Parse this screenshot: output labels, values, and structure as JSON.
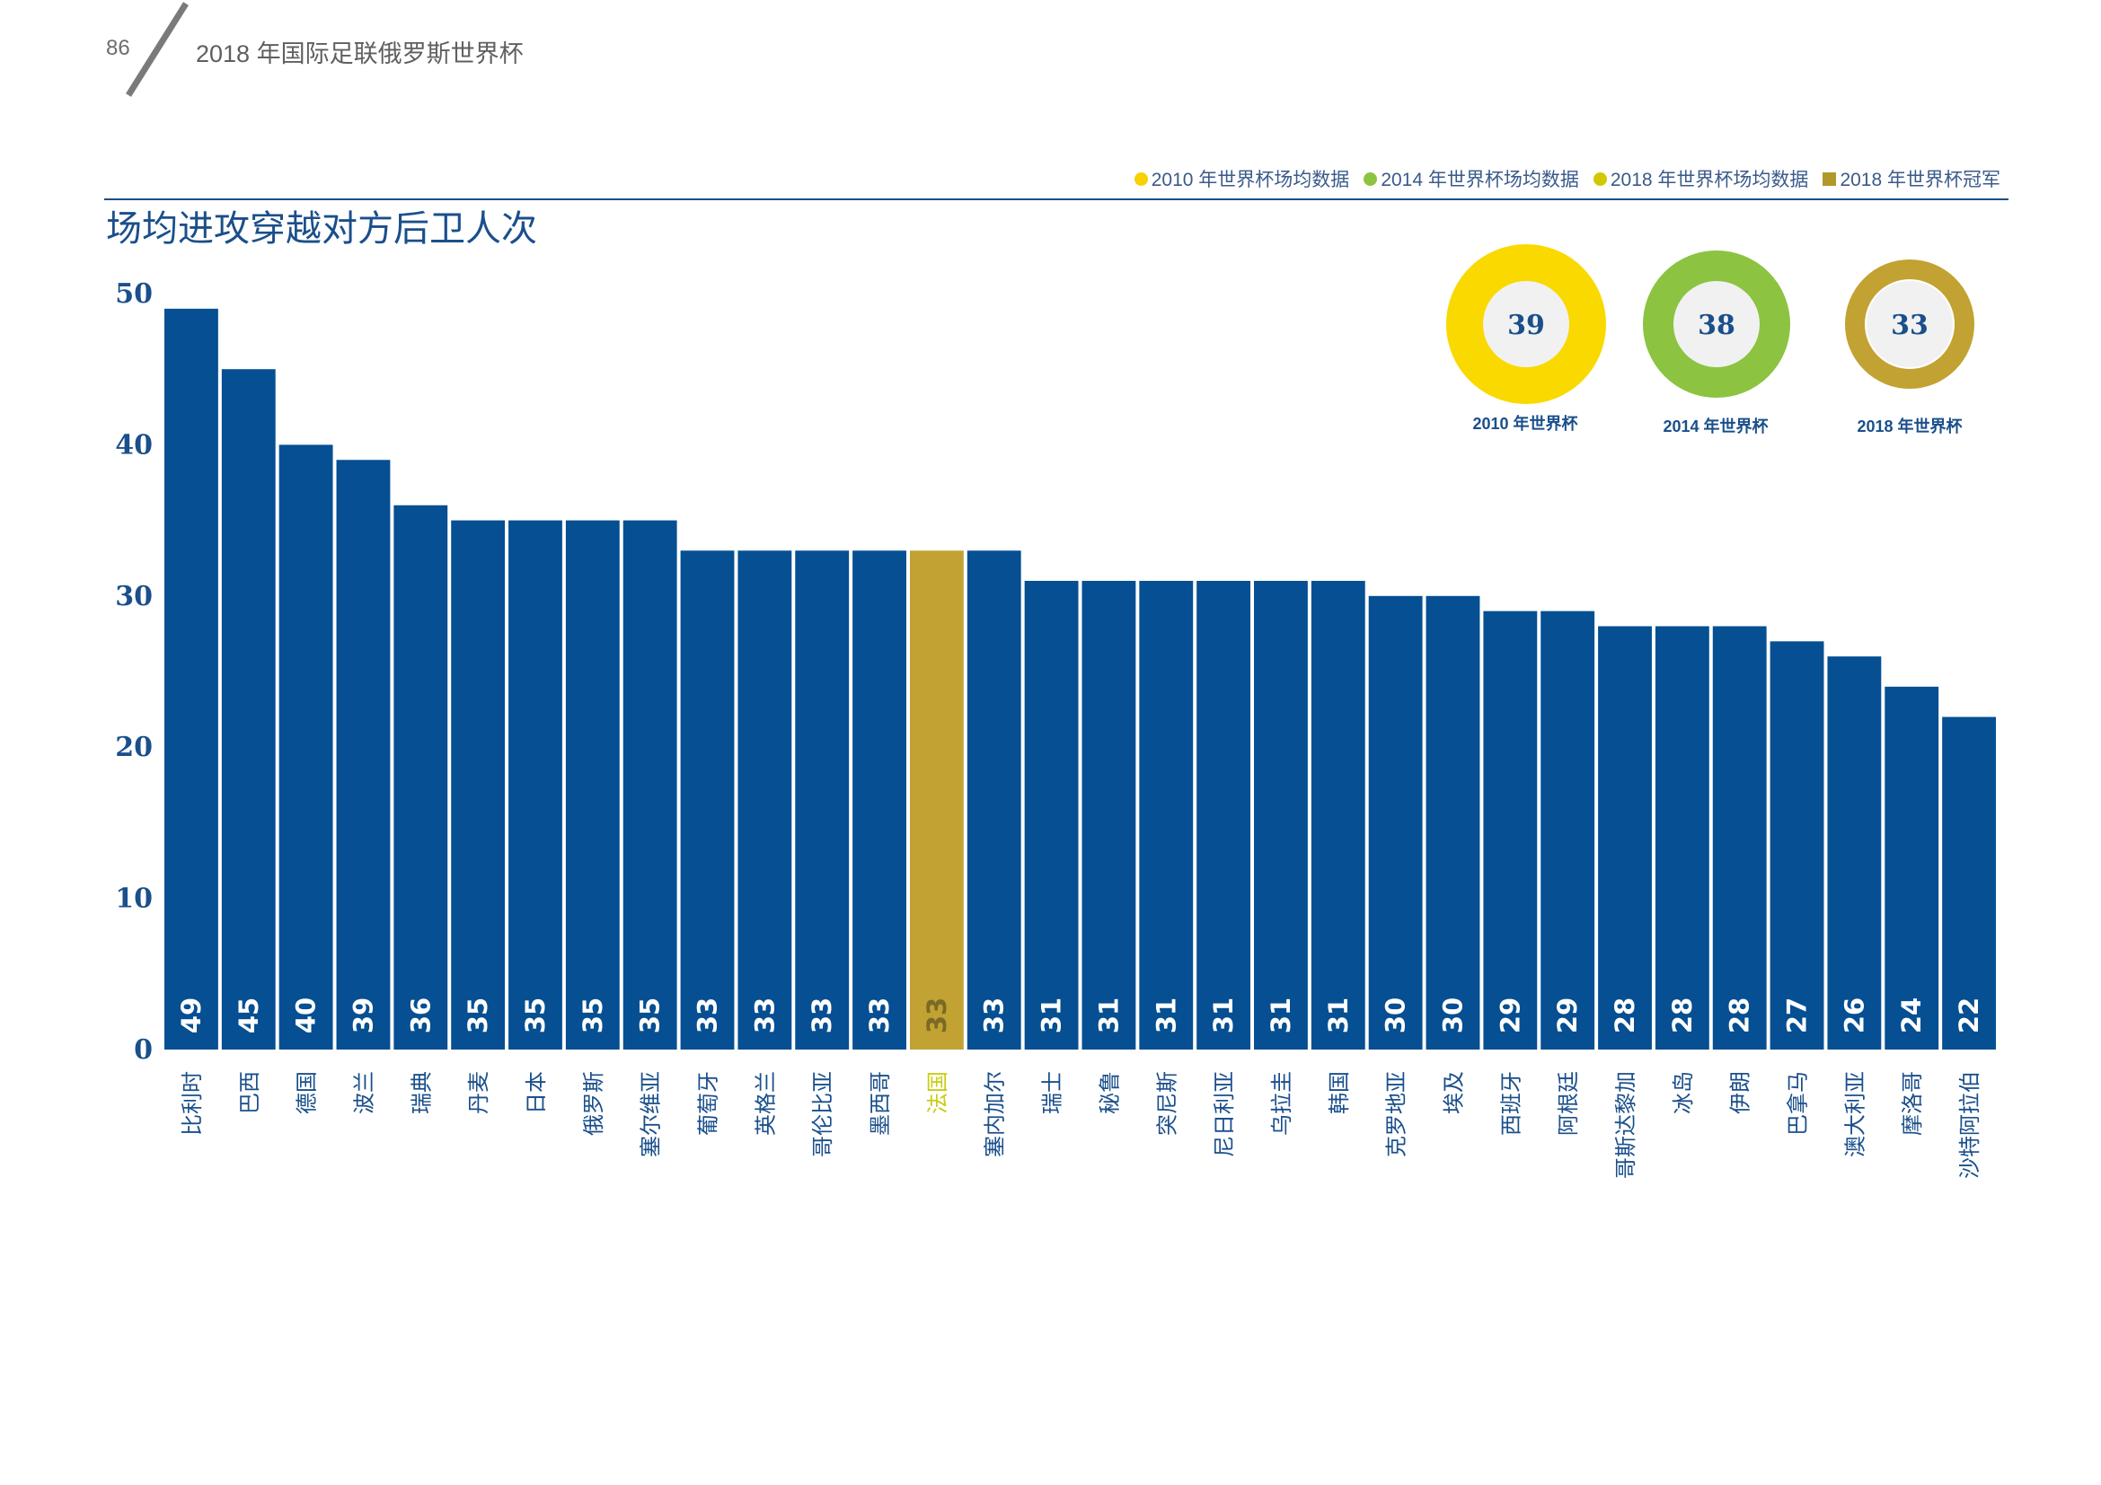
{
  "header": {
    "page_number": "86",
    "doc_title": "2018 年国际足联俄罗斯世界杯"
  },
  "legend": [
    {
      "label": "2010 年世界杯场均数据",
      "color": "#f9d000",
      "shape": "dot"
    },
    {
      "label": "2014 年世界杯场均数据",
      "color": "#8cc341",
      "shape": "dot"
    },
    {
      "label": "2018 年世界杯场均数据",
      "color": "#d2c700",
      "shape": "dot"
    },
    {
      "label": "2018 年世界杯冠军",
      "color": "#b0992a",
      "shape": "square"
    }
  ],
  "averages": [
    {
      "label": "2010 年世界杯",
      "value": 39,
      "color": "#f9d900"
    },
    {
      "label": "2014 年世界杯",
      "value": 38,
      "color": "#8cc341"
    },
    {
      "label": "2018 年世界杯",
      "value": 33,
      "color": "#c2a232"
    }
  ],
  "colors": {
    "bar": "#054f92",
    "highlight_bar": "#c1a233",
    "highlight_label": "#c9cc10",
    "axis_text": "#1a4f8b",
    "bar_value_text": "#ffffff"
  },
  "chart_data": {
    "type": "bar",
    "title": "场均进攻穿越对方后卫人次",
    "categories": [
      "比利时",
      "巴西",
      "德国",
      "波兰",
      "瑞典",
      "丹麦",
      "日本",
      "俄罗斯",
      "塞尔维亚",
      "葡萄牙",
      "英格兰",
      "哥伦比亚",
      "墨西哥",
      "法国",
      "塞内加尔",
      "瑞士",
      "秘鲁",
      "突尼斯",
      "尼日利亚",
      "乌拉圭",
      "韩国",
      "克罗地亚",
      "埃及",
      "西班牙",
      "阿根廷",
      "哥斯达黎加",
      "冰岛",
      "伊朗",
      "巴拿马",
      "澳大利亚",
      "摩洛哥",
      "沙特阿拉伯"
    ],
    "values": [
      49,
      45,
      40,
      39,
      36,
      35,
      35,
      35,
      35,
      33,
      33,
      33,
      33,
      33,
      33,
      31,
      31,
      31,
      31,
      31,
      31,
      30,
      30,
      29,
      29,
      28,
      28,
      28,
      27,
      26,
      24,
      22
    ],
    "highlight": "法国",
    "yticks": [
      0,
      10,
      20,
      30,
      40,
      50
    ],
    "ylim": [
      0,
      50
    ]
  }
}
